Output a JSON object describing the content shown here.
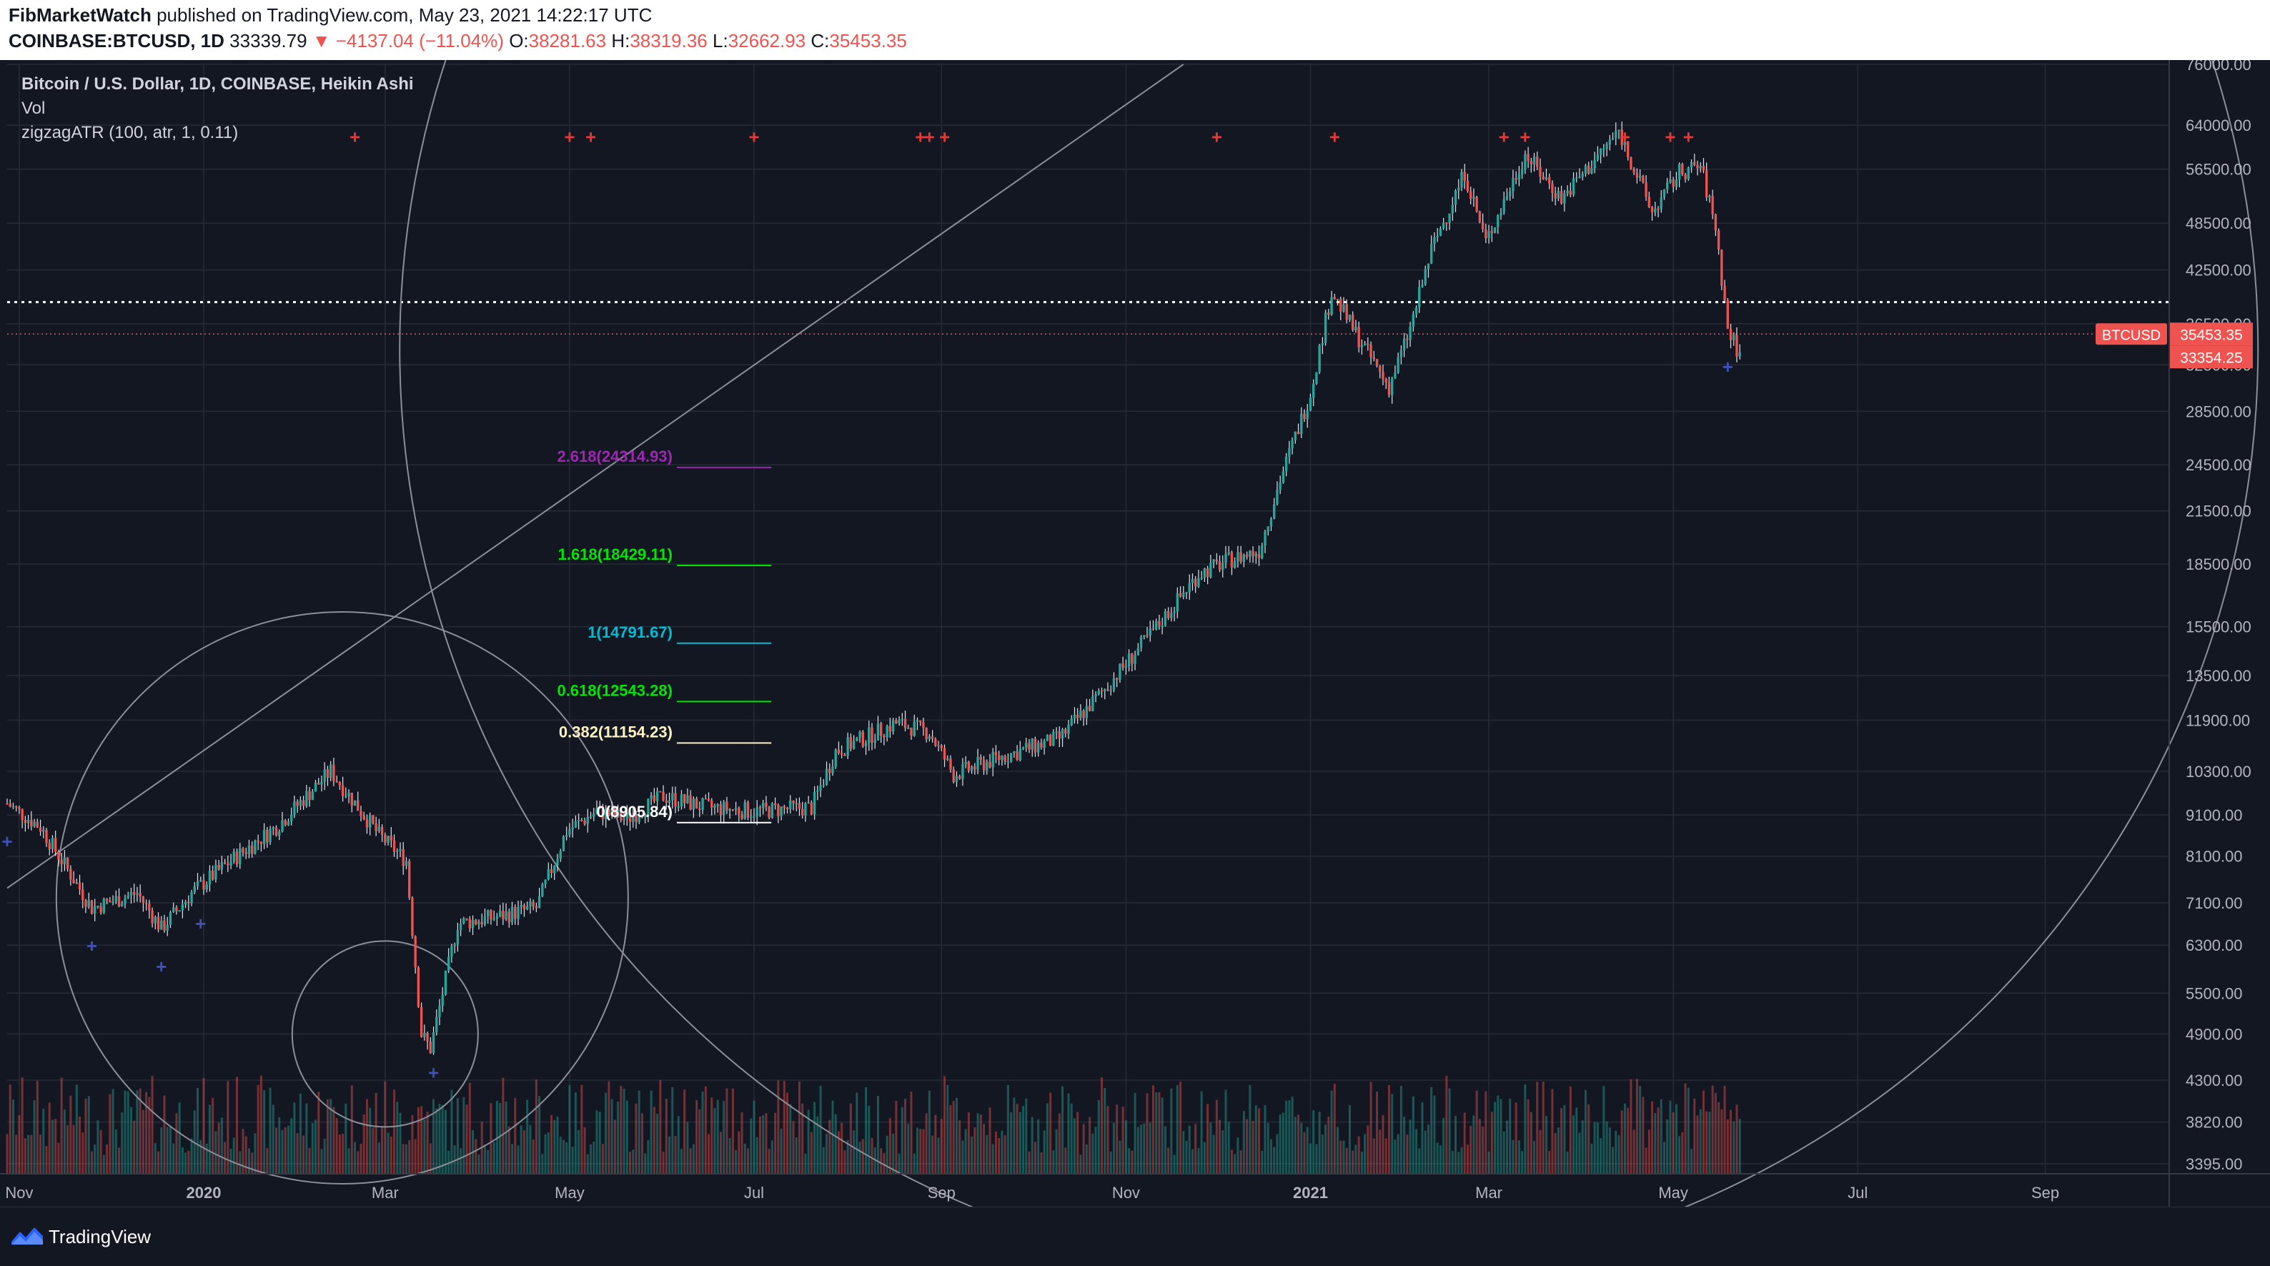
{
  "header": {
    "author": "FibMarketWatch",
    "published": "published on TradingView.com, May 23, 2021 14:22:17 UTC",
    "symbol": "COINBASE:BTCUSD, 1D",
    "price": "33339.79",
    "change": "▼ −4137.04 (−11.04%)",
    "o_label": "O:",
    "o_val": "38281.63",
    "h_label": "H:",
    "h_val": "38319.36",
    "l_label": "L:",
    "l_val": "32662.93",
    "c_label": "C:",
    "c_val": "35453.35"
  },
  "legend": {
    "title": "Bitcoin / U.S. Dollar, 1D, COINBASE, Heikin Ashi",
    "vol": "Vol",
    "indicator": "zigzagATR (100, atr, 1, 0.11)"
  },
  "footer": {
    "brand": "TradingView"
  },
  "colors": {
    "background": "#131722",
    "up": "#26a69a",
    "down": "#ef5350",
    "grid": "#2a2e39",
    "axis_text": "#b2b5be"
  },
  "chart_data": {
    "type": "candlestick",
    "style": "Heikin Ashi",
    "scale": "log",
    "ylim": [
      3300,
      76000
    ],
    "xlim": [
      "2019-10-28",
      "2021-10-12"
    ],
    "y_ticks": [
      "76000.00",
      "64000.00",
      "56500.00",
      "48500.00",
      "42500.00",
      "36500.00",
      "32500.00",
      "28500.00",
      "24500.00",
      "21500.00",
      "18500.00",
      "15500.00",
      "13500.00",
      "11900.00",
      "10300.00",
      "9100.00",
      "8100.00",
      "7100.00",
      "6300.00",
      "5500.00",
      "4900.00",
      "4300.00",
      "3820.00",
      "3395.00"
    ],
    "x_ticks": [
      {
        "label": "Nov",
        "date": "2019-11-01",
        "bold": false
      },
      {
        "label": "2020",
        "date": "2020-01-01",
        "bold": true
      },
      {
        "label": "Mar",
        "date": "2020-03-01",
        "bold": false
      },
      {
        "label": "May",
        "date": "2020-05-01",
        "bold": false
      },
      {
        "label": "Jul",
        "date": "2020-07-01",
        "bold": false
      },
      {
        "label": "Sep",
        "date": "2020-09-01",
        "bold": false
      },
      {
        "label": "Nov",
        "date": "2020-11-01",
        "bold": false
      },
      {
        "label": "2021",
        "date": "2021-01-01",
        "bold": true
      },
      {
        "label": "Mar",
        "date": "2021-03-01",
        "bold": false
      },
      {
        "label": "May",
        "date": "2021-05-01",
        "bold": false
      },
      {
        "label": "Jul",
        "date": "2021-07-01",
        "bold": false
      },
      {
        "label": "Sep",
        "date": "2021-09-01",
        "bold": false
      }
    ],
    "price_path": [
      [
        "2019-10-28",
        9400
      ],
      [
        "2019-11-08",
        8800
      ],
      [
        "2019-11-25",
        7000
      ],
      [
        "2019-12-10",
        7300
      ],
      [
        "2019-12-18",
        6600
      ],
      [
        "2019-12-28",
        7300
      ],
      [
        "2020-01-10",
        8000
      ],
      [
        "2020-01-25",
        8800
      ],
      [
        "2020-02-12",
        10300
      ],
      [
        "2020-02-28",
        8600
      ],
      [
        "2020-03-08",
        8000
      ],
      [
        "2020-03-13",
        4900
      ],
      [
        "2020-03-16",
        4700
      ],
      [
        "2020-03-25",
        6700
      ],
      [
        "2020-04-05",
        6800
      ],
      [
        "2020-04-20",
        7000
      ],
      [
        "2020-04-30",
        8700
      ],
      [
        "2020-05-10",
        9200
      ],
      [
        "2020-05-20",
        9000
      ],
      [
        "2020-06-01",
        9600
      ],
      [
        "2020-06-15",
        9300
      ],
      [
        "2020-07-01",
        9200
      ],
      [
        "2020-07-20",
        9300
      ],
      [
        "2020-07-28",
        10900
      ],
      [
        "2020-08-17",
        11800
      ],
      [
        "2020-08-28",
        11500
      ],
      [
        "2020-09-05",
        10200
      ],
      [
        "2020-09-20",
        10700
      ],
      [
        "2020-10-10",
        11300
      ],
      [
        "2020-10-25",
        13000
      ],
      [
        "2020-11-10",
        15300
      ],
      [
        "2020-11-25",
        18000
      ],
      [
        "2020-12-05",
        18700
      ],
      [
        "2020-12-15",
        19200
      ],
      [
        "2020-12-22",
        23500
      ],
      [
        "2021-01-01",
        30000
      ],
      [
        "2021-01-08",
        40000
      ],
      [
        "2021-01-15",
        36000
      ],
      [
        "2021-01-27",
        30500
      ],
      [
        "2021-02-03",
        36000
      ],
      [
        "2021-02-10",
        45000
      ],
      [
        "2021-02-21",
        56000
      ],
      [
        "2021-02-28",
        46000
      ],
      [
        "2021-03-13",
        59000
      ],
      [
        "2021-03-25",
        52000
      ],
      [
        "2021-04-05",
        58000
      ],
      [
        "2021-04-13",
        63000
      ],
      [
        "2021-04-24",
        50000
      ],
      [
        "2021-05-03",
        56000
      ],
      [
        "2021-05-10",
        57000
      ],
      [
        "2021-05-15",
        48000
      ],
      [
        "2021-05-19",
        36000
      ],
      [
        "2021-05-23",
        33354
      ]
    ],
    "fib_levels": [
      {
        "ratio": "2.618",
        "price": 24314.93,
        "label": "2.618(24314.93)",
        "color": "#9c27b0"
      },
      {
        "ratio": "1.618",
        "price": 18429.11,
        "label": "1.618(18429.11)",
        "color": "#00e600"
      },
      {
        "ratio": "1",
        "price": 14791.67,
        "label": "1(14791.67)",
        "color": "#00bcd4"
      },
      {
        "ratio": "0.618",
        "price": 12543.28,
        "label": "0.618(12543.28)",
        "color": "#00e600"
      },
      {
        "ratio": "0.382",
        "price": 11154.23,
        "label": "0.382(11154.23)",
        "color": "#fff3c4"
      },
      {
        "ratio": "0",
        "price": 8905.84,
        "label": "0(8905.84)",
        "color": "#ffffff"
      }
    ],
    "fib_range": {
      "from": "2020-05-01",
      "to": "2020-07-02"
    },
    "zigzag_highs": [
      "2020-02-20",
      "2020-05-01",
      "2020-05-08",
      "2020-07-01",
      "2020-08-25",
      "2020-08-28",
      "2020-09-02",
      "2020-12-01",
      "2021-01-09",
      "2021-03-06",
      "2021-03-13",
      "2021-04-15",
      "2021-04-30",
      "2021-05-06"
    ],
    "zigzag_lows": [
      "2019-10-28",
      "2019-11-25",
      "2019-12-18",
      "2019-12-31",
      "2020-03-17",
      "2021-05-19"
    ],
    "zigzag_high_price": 62000,
    "horizontal_line": {
      "price": 38800
    },
    "last_price_line": {
      "price": 35453.35
    },
    "price_labels": [
      {
        "text": "BTCUSD",
        "price": 35453.35,
        "color": "#ef5350"
      },
      {
        "text": "35453.35",
        "price": 35453.35,
        "color": "#ef5350"
      },
      {
        "text": "33354.25",
        "price": 33300,
        "color": "#ef5350"
      }
    ],
    "volume_max": 60000
  }
}
